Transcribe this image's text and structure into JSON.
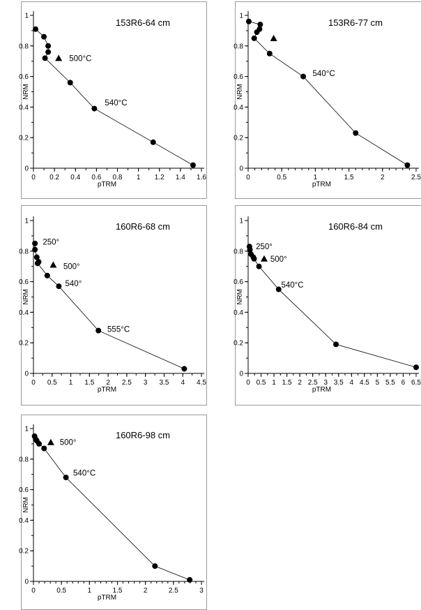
{
  "chart_data": [
    {
      "type": "scatter",
      "title": "153R6-64 cm",
      "xlabel": "pTRM",
      "ylabel": "NRM",
      "xlim": [
        0,
        1.6
      ],
      "ylim": [
        0,
        1
      ],
      "xticks": [
        "0",
        "0.2",
        "0.4",
        "0.6",
        "0.8",
        "1",
        "1.2",
        "1.4",
        "1.6"
      ],
      "yticks": [
        "0",
        "0.2",
        "0.4",
        "0.6",
        "0.8",
        "1"
      ],
      "x_minor": 0.1,
      "y_minor": 0.1,
      "points": [
        {
          "x": 0.02,
          "y": 0.91
        },
        {
          "x": 0.1,
          "y": 0.86
        },
        {
          "x": 0.14,
          "y": 0.8
        },
        {
          "x": 0.14,
          "y": 0.76
        },
        {
          "x": 0.11,
          "y": 0.72
        },
        {
          "x": 0.35,
          "y": 0.56
        },
        {
          "x": 0.58,
          "y": 0.39
        },
        {
          "x": 1.14,
          "y": 0.17
        },
        {
          "x": 1.52,
          "y": 0.02
        }
      ],
      "triangles": [
        {
          "x": 0.24,
          "y": 0.72
        }
      ],
      "labels": [
        {
          "text": "500°C",
          "x": 0.34,
          "y": 0.72
        },
        {
          "text": "540°C",
          "x": 0.68,
          "y": 0.43
        }
      ]
    },
    {
      "type": "scatter",
      "title": "153R6-77 cm",
      "xlabel": "pTRM",
      "ylabel": "NRM",
      "xlim": [
        0,
        2.5
      ],
      "ylim": [
        0,
        1
      ],
      "xticks": [
        "0",
        "0.5",
        "1",
        "1.5",
        "2",
        "2.5"
      ],
      "yticks": [
        "0",
        "0.2",
        "0.4",
        "0.6",
        "0.8",
        "1"
      ],
      "x_minor": 0.1,
      "y_minor": 0.1,
      "points": [
        {
          "x": 0.01,
          "y": 0.96
        },
        {
          "x": 0.18,
          "y": 0.94
        },
        {
          "x": 0.17,
          "y": 0.91
        },
        {
          "x": 0.13,
          "y": 0.89
        },
        {
          "x": 0.09,
          "y": 0.85
        },
        {
          "x": 0.32,
          "y": 0.75
        },
        {
          "x": 0.82,
          "y": 0.6
        },
        {
          "x": 1.6,
          "y": 0.23
        },
        {
          "x": 2.37,
          "y": 0.02
        }
      ],
      "triangles": [
        {
          "x": 0.38,
          "y": 0.85
        }
      ],
      "labels": [
        {
          "text": "540°C",
          "x": 0.96,
          "y": 0.62
        }
      ]
    },
    {
      "type": "scatter",
      "title": "160R6-68 cm",
      "xlabel": "pTRM",
      "ylabel": "NRM",
      "xlim": [
        0,
        4.5
      ],
      "ylim": [
        0,
        1
      ],
      "xticks": [
        "0",
        "0.5",
        "1",
        "1.5",
        "2",
        "2.5",
        "3",
        "3.5",
        "4",
        "4.5"
      ],
      "yticks": [
        "0",
        "0.2",
        "0.4",
        "0.6",
        "0.8",
        "1"
      ],
      "x_minor": 0.25,
      "y_minor": 0.1,
      "points": [
        {
          "x": 0.04,
          "y": 0.85
        },
        {
          "x": 0.04,
          "y": 0.81
        },
        {
          "x": 0.09,
          "y": 0.76
        },
        {
          "x": 0.14,
          "y": 0.73
        },
        {
          "x": 0.11,
          "y": 0.72
        },
        {
          "x": 0.37,
          "y": 0.64
        },
        {
          "x": 0.68,
          "y": 0.57
        },
        {
          "x": 1.74,
          "y": 0.28
        },
        {
          "x": 4.04,
          "y": 0.03
        }
      ],
      "triangles": [
        {
          "x": 0.53,
          "y": 0.71
        }
      ],
      "labels": [
        {
          "text": "250°",
          "x": 0.25,
          "y": 0.86
        },
        {
          "text": "500°",
          "x": 0.8,
          "y": 0.7
        },
        {
          "text": "540°",
          "x": 0.85,
          "y": 0.59
        },
        {
          "text": "555°C",
          "x": 1.98,
          "y": 0.29
        }
      ]
    },
    {
      "type": "scatter",
      "title": "160R6-84 cm",
      "xlabel": "pTRM",
      "ylabel": "NRM",
      "xlim": [
        0,
        6.5
      ],
      "ylim": [
        0,
        1
      ],
      "xticks": [
        "0",
        "0.5",
        "1",
        "1.5",
        "2",
        "2.5",
        "3",
        "3.5",
        "4",
        "4.5",
        "5",
        "5.5",
        "6",
        "6.5"
      ],
      "yticks": [
        "0",
        "0.2",
        "0.4",
        "0.6",
        "0.8",
        "1"
      ],
      "x_minor": 0.25,
      "y_minor": 0.1,
      "points": [
        {
          "x": 0.05,
          "y": 0.83
        },
        {
          "x": 0.07,
          "y": 0.81
        },
        {
          "x": 0.11,
          "y": 0.78
        },
        {
          "x": 0.2,
          "y": 0.76
        },
        {
          "x": 0.23,
          "y": 0.75
        },
        {
          "x": 0.42,
          "y": 0.7
        },
        {
          "x": 1.18,
          "y": 0.55
        },
        {
          "x": 3.4,
          "y": 0.19
        },
        {
          "x": 6.5,
          "y": 0.04
        }
      ],
      "triangles": [
        {
          "x": 0.62,
          "y": 0.75
        }
      ],
      "labels": [
        {
          "text": "250°",
          "x": 0.3,
          "y": 0.83
        },
        {
          "text": "500°",
          "x": 0.86,
          "y": 0.75
        },
        {
          "text": "540°C",
          "x": 1.28,
          "y": 0.58
        }
      ]
    },
    {
      "type": "scatter",
      "title": "160R6-98 cm",
      "xlabel": "pTRM",
      "ylabel": "NRM",
      "xlim": [
        0,
        3
      ],
      "ylim": [
        0,
        1
      ],
      "xticks": [
        "0",
        "0.5",
        "1",
        "1.5",
        "2",
        "2.5",
        "3"
      ],
      "yticks": [
        "0",
        "0.2",
        "0.4",
        "0.6",
        "0.8",
        "1"
      ],
      "x_minor": 0.1,
      "y_minor": 0.1,
      "points": [
        {
          "x": 0.02,
          "y": 0.95
        },
        {
          "x": 0.04,
          "y": 0.93
        },
        {
          "x": 0.06,
          "y": 0.92
        },
        {
          "x": 0.1,
          "y": 0.9
        },
        {
          "x": 0.19,
          "y": 0.87
        },
        {
          "x": 0.58,
          "y": 0.68
        },
        {
          "x": 2.17,
          "y": 0.1
        },
        {
          "x": 2.79,
          "y": 0.01
        }
      ],
      "triangles": [
        {
          "x": 0.31,
          "y": 0.91
        }
      ],
      "labels": [
        {
          "text": "500°",
          "x": 0.47,
          "y": 0.91
        },
        {
          "text": "540°C",
          "x": 0.71,
          "y": 0.71
        }
      ]
    }
  ]
}
